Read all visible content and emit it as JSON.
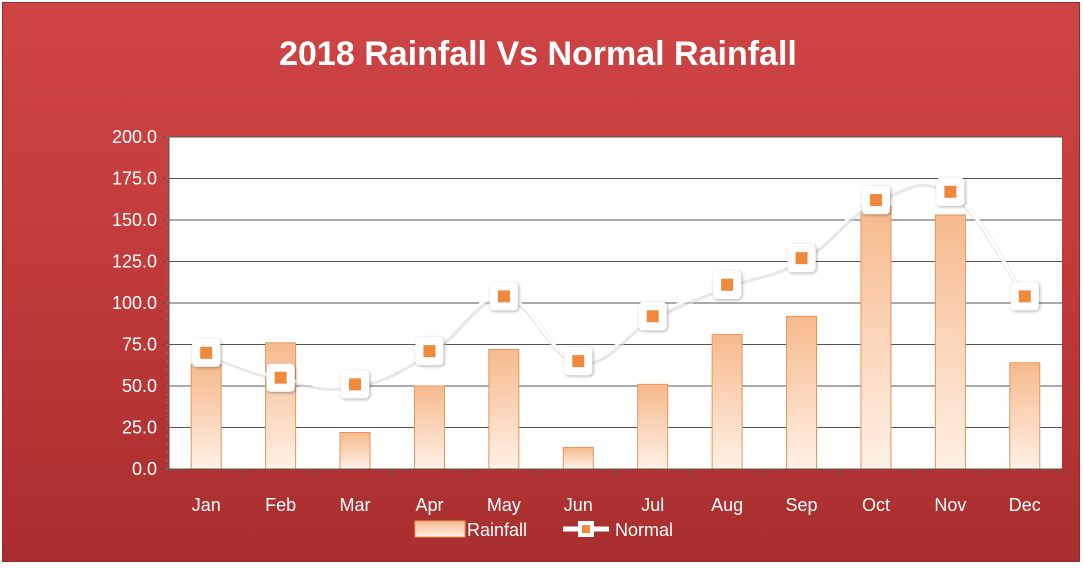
{
  "chart_data": {
    "type": "bar",
    "title": "2018 Rainfall Vs Normal Rainfall",
    "categories": [
      "Jan",
      "Feb",
      "Mar",
      "Apr",
      "May",
      "Jun",
      "Jul",
      "Aug",
      "Sep",
      "Oct",
      "Nov",
      "Dec"
    ],
    "series": [
      {
        "name": "Rainfall",
        "type": "bar",
        "values": [
          63,
          76,
          22,
          50,
          72,
          13,
          51,
          81,
          92,
          158,
          153,
          64
        ]
      },
      {
        "name": "Normal",
        "type": "line",
        "values": [
          70,
          55,
          51,
          71,
          104,
          65,
          92,
          111,
          127,
          162,
          167,
          104
        ]
      }
    ],
    "ylim": [
      0,
      200
    ],
    "yticks": [
      "200.0",
      "175.0",
      "150.0",
      "125.0",
      "100.0",
      "75.0",
      "50.0",
      "25.0",
      "0.0"
    ],
    "grid": true,
    "legend": "bottom",
    "colors": {
      "background": "#c23b3b",
      "plot_area": "#ffffff",
      "bar_fill_top": "#f6b98c",
      "bar_fill_bottom": "#fde7d6",
      "bar_stroke": "#e8955a",
      "line": "#ffffff",
      "marker": "#ef8a3c"
    }
  }
}
